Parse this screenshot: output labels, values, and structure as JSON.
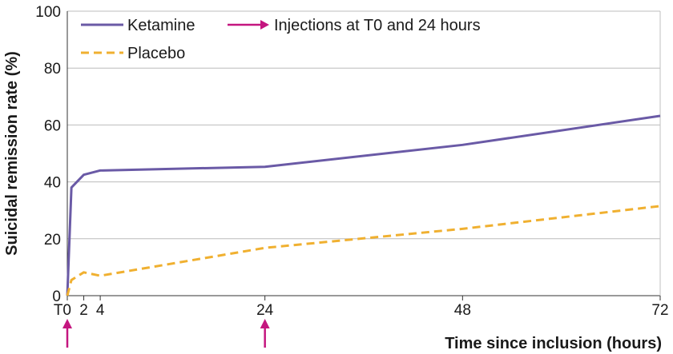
{
  "chart_data": {
    "type": "line",
    "title": "",
    "xlabel": "Time since inclusion (hours)",
    "ylabel": "Suicidal remission rate (%)",
    "xlim": [
      0,
      72
    ],
    "ylim": [
      0,
      100
    ],
    "x_ticks": [
      {
        "value": 0,
        "label": "T0"
      },
      {
        "value": 2,
        "label": "2"
      },
      {
        "value": 4,
        "label": "4"
      },
      {
        "value": 24,
        "label": "24"
      },
      {
        "value": 48,
        "label": "48"
      },
      {
        "value": 72,
        "label": "72"
      }
    ],
    "y_ticks": [
      0,
      20,
      40,
      60,
      80,
      100
    ],
    "grid": "horizontal",
    "legend_position": "top-left",
    "series": [
      {
        "name": "Ketamine",
        "color": "#6a5aa6",
        "style": "solid",
        "x": [
          0,
          0.5,
          2,
          4,
          24,
          48,
          72
        ],
        "y": [
          0,
          38,
          42.5,
          44,
          45.3,
          53,
          63.2
        ]
      },
      {
        "name": "Placebo",
        "color": "#f0b030",
        "style": "dashed",
        "x": [
          0,
          0.5,
          2,
          4,
          24,
          48,
          72
        ],
        "y": [
          0,
          5.5,
          8.2,
          7,
          16.8,
          23.5,
          31.5
        ]
      }
    ],
    "injections": {
      "label": "Injections at T0 and 24 hours",
      "color": "#c4167f",
      "x": [
        0,
        24
      ]
    }
  }
}
